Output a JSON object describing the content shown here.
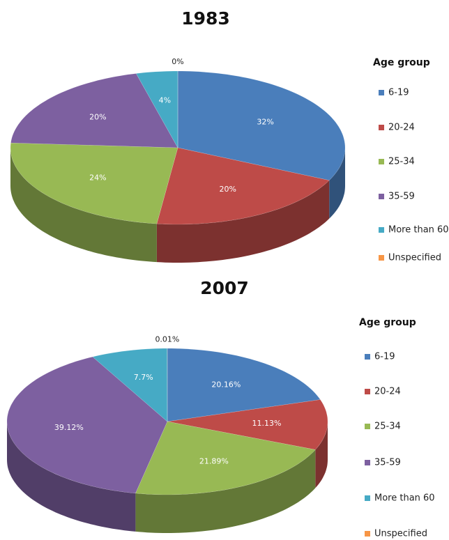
{
  "chart_data": [
    {
      "type": "pie",
      "title": "1983",
      "legend_title": "Age group",
      "categories": [
        "6-19",
        "20-24",
        "25-34",
        "35-59",
        "More than 60",
        "Unspecified"
      ],
      "values": [
        32,
        20,
        24,
        20,
        4,
        0
      ],
      "value_labels": [
        "32%",
        "20%",
        "24%",
        "20%",
        "4%",
        "0%"
      ],
      "colors": [
        "#4a7ebb",
        "#be4b48",
        "#98b954",
        "#7d60a0",
        "#46aac5",
        "#f79646"
      ]
    },
    {
      "type": "pie",
      "title": "2007",
      "legend_title": "Age group",
      "categories": [
        "6-19",
        "20-24",
        "25-34",
        "35-59",
        "More than 60",
        "Unspecified"
      ],
      "values": [
        20.16,
        11.13,
        21.89,
        39.12,
        7.7,
        0.01
      ],
      "value_labels": [
        "20.16%",
        "11.13%",
        "21.89%",
        "39.12%",
        "7.7%",
        "0.01%"
      ],
      "colors": [
        "#4a7ebb",
        "#be4b48",
        "#98b954",
        "#7d60a0",
        "#46aac5",
        "#f79646"
      ]
    }
  ]
}
